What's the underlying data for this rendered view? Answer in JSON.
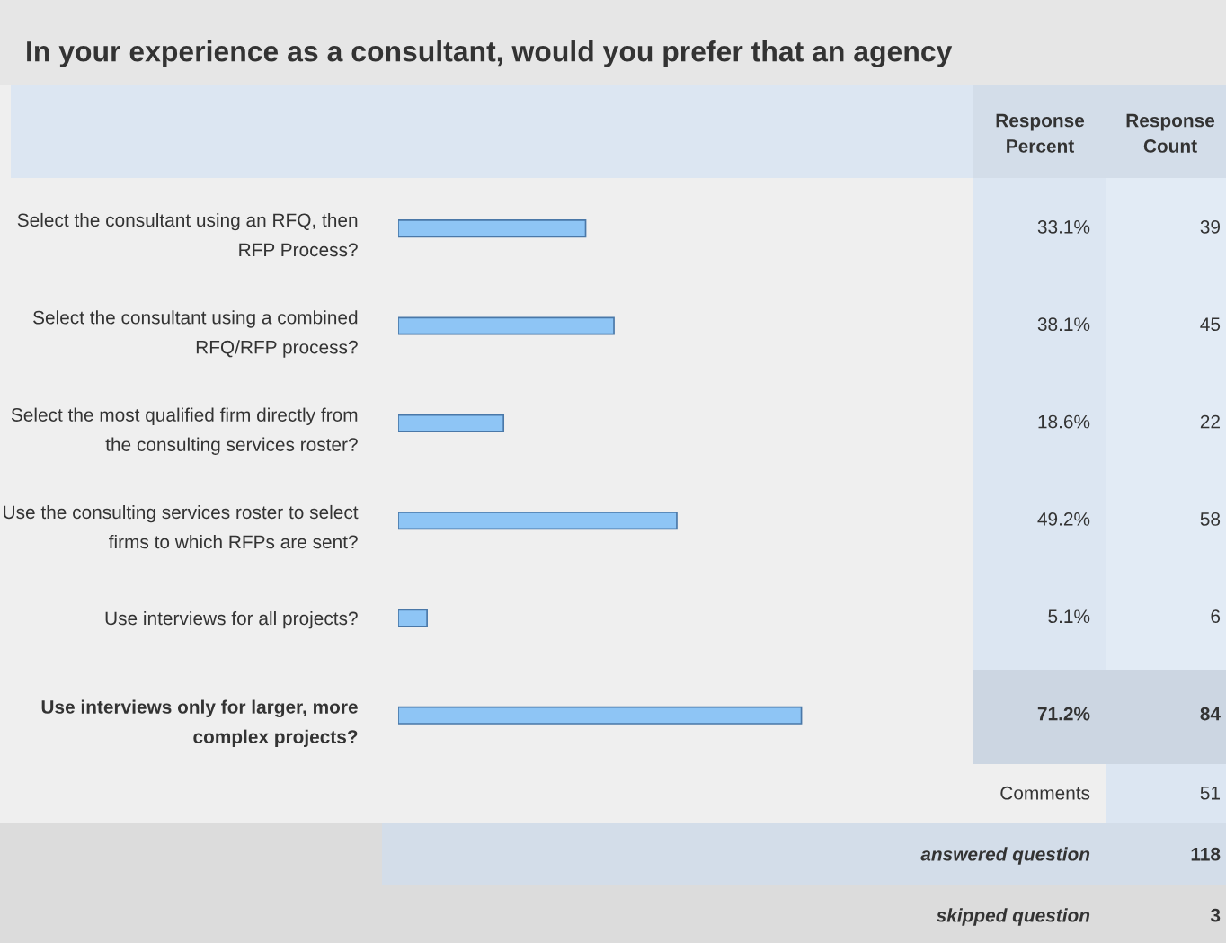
{
  "chart_data": {
    "type": "bar",
    "orientation": "horizontal",
    "title": "In your experience as a consultant, would you prefer that an agency",
    "categories": [
      "Select the consultant using an RFQ, then RFP Process?",
      "Select the consultant using a combined RFQ/RFP process?",
      "Select the most qualified firm directly from the consulting services roster?",
      "Use the consulting services roster to select firms to which RFPs are sent?",
      "Use interviews for all projects?",
      "Use interviews only for larger, more complex projects?"
    ],
    "values": [
      33.1,
      38.1,
      18.6,
      49.2,
      5.1,
      71.2
    ],
    "value_labels": [
      "33.1%",
      "38.1%",
      "18.6%",
      "49.2%",
      "5.1%",
      "71.2%"
    ],
    "color": "#8ec5f5",
    "tick_labels": "y",
    "grid": false,
    "legend": false,
    "annotations": [
      "Response Percent",
      "Response Count",
      "39",
      "45",
      "22",
      "58",
      "6",
      "84",
      "Comments",
      "51",
      "answered question",
      "118",
      "skipped question",
      "3"
    ]
  }
}
